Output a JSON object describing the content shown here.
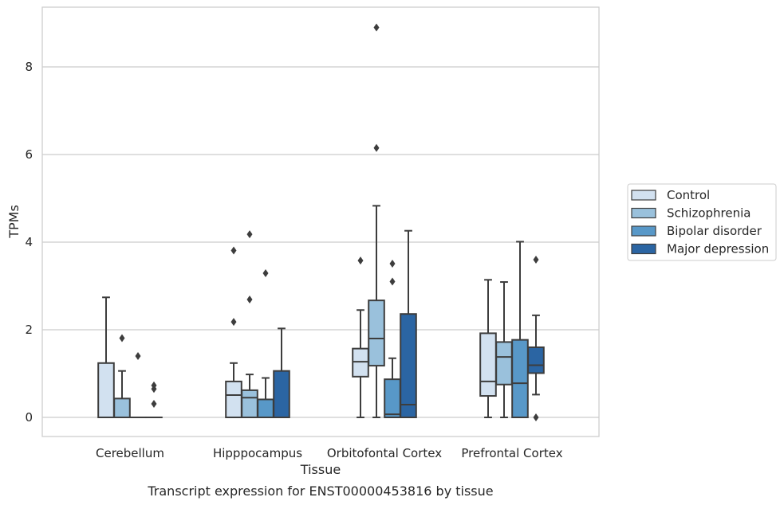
{
  "chart_data": {
    "type": "box",
    "title": "Transcript expression for ENST00000453816 by tissue",
    "xlabel": "Tissue",
    "ylabel": "TPMs",
    "ylim": [
      -0.42,
      9.3
    ],
    "yticks": [
      0,
      2,
      4,
      6,
      8
    ],
    "grid": "horizontal",
    "legend_position": "right",
    "categories": [
      "Cerebellum",
      "Hipppocampus",
      "Orbitofontal Cortex",
      "Prefrontal Cortex"
    ],
    "series": [
      {
        "name": "Control",
        "color": "#d2e1f0",
        "boxes": [
          {
            "whislo": 0,
            "q1": 0,
            "med": 0,
            "q3": 1.24,
            "whishi": 2.74,
            "fliers": []
          },
          {
            "whislo": 0,
            "q1": 0,
            "med": 0.51,
            "q3": 0.82,
            "whishi": 1.24,
            "fliers": [
              2.18,
              3.81
            ]
          },
          {
            "whislo": 0,
            "q1": 0.93,
            "med": 1.27,
            "q3": 1.57,
            "whishi": 2.45,
            "fliers": [
              3.58
            ]
          },
          {
            "whislo": 0,
            "q1": 0.49,
            "med": 0.82,
            "q3": 1.92,
            "whishi": 3.14,
            "fliers": []
          }
        ]
      },
      {
        "name": "Schizophrenia",
        "color": "#9ac1dc",
        "boxes": [
          {
            "whislo": 0,
            "q1": 0,
            "med": 0,
            "q3": 0.43,
            "whishi": 1.06,
            "fliers": [
              1.81
            ]
          },
          {
            "whislo": 0,
            "q1": 0,
            "med": 0.45,
            "q3": 0.62,
            "whishi": 0.98,
            "fliers": [
              2.69,
              4.18
            ]
          },
          {
            "whislo": 0,
            "q1": 1.18,
            "med": 1.8,
            "q3": 2.67,
            "whishi": 4.83,
            "fliers": [
              6.15,
              8.9
            ]
          },
          {
            "whislo": 0,
            "q1": 0.75,
            "med": 1.38,
            "q3": 1.72,
            "whishi": 3.09,
            "fliers": []
          }
        ]
      },
      {
        "name": "Bipolar disorder",
        "color": "#5898c8",
        "boxes": [
          {
            "whislo": 0,
            "q1": 0,
            "med": 0,
            "q3": 0,
            "whishi": 0,
            "fliers": [
              1.4
            ]
          },
          {
            "whislo": 0,
            "q1": 0,
            "med": 0,
            "q3": 0.41,
            "whishi": 0.9,
            "fliers": [
              3.29
            ]
          },
          {
            "whislo": 0,
            "q1": 0,
            "med": 0.07,
            "q3": 0.87,
            "whishi": 1.35,
            "fliers": [
              3.1,
              3.51
            ]
          },
          {
            "whislo": 0,
            "q1": 0,
            "med": 0.78,
            "q3": 1.77,
            "whishi": 4.01,
            "fliers": []
          }
        ]
      },
      {
        "name": "Major depression",
        "color": "#2b65a3",
        "boxes": [
          {
            "whislo": 0,
            "q1": 0,
            "med": 0,
            "q3": 0,
            "whishi": 0,
            "fliers": [
              0.31,
              0.65,
              0.73
            ]
          },
          {
            "whislo": 0,
            "q1": 0,
            "med": 0,
            "q3": 1.06,
            "whishi": 2.03,
            "fliers": []
          },
          {
            "whislo": 0,
            "q1": 0,
            "med": 0.29,
            "q3": 2.36,
            "whishi": 4.26,
            "fliers": []
          },
          {
            "whislo": 0.52,
            "q1": 1.01,
            "med": 1.19,
            "q3": 1.6,
            "whishi": 2.33,
            "fliers": [
              0,
              3.6
            ]
          }
        ]
      }
    ]
  }
}
